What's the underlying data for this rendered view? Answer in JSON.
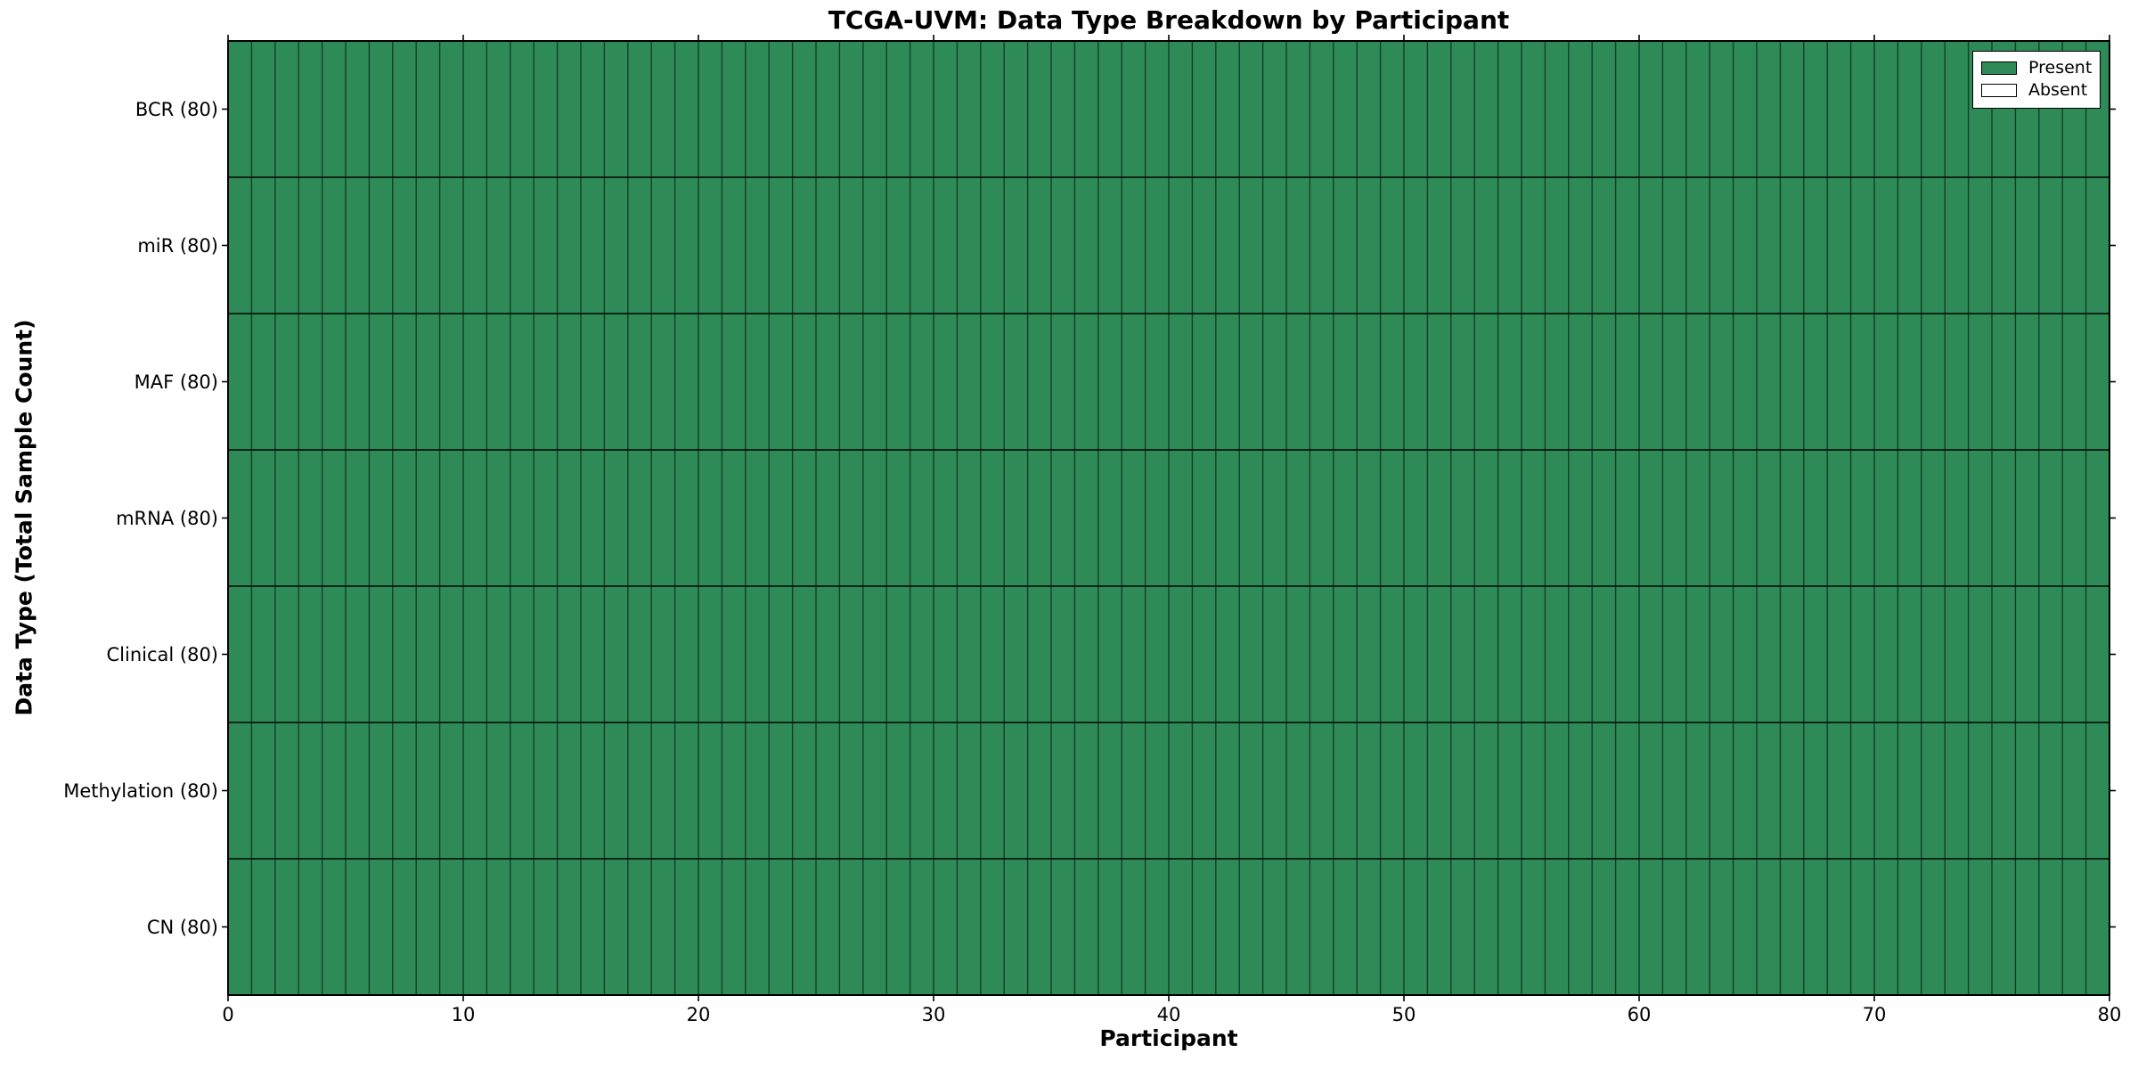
{
  "chart_data": {
    "type": "heatmap",
    "title": "TCGA-UVM: Data Type Breakdown by Participant",
    "xlabel": "Participant",
    "ylabel": "Data Type (Total Sample Count)",
    "x_axis": {
      "min": 0,
      "max": 80,
      "ticks": [
        0,
        10,
        20,
        30,
        40,
        50,
        60,
        70,
        80
      ]
    },
    "participants": 80,
    "rows_top_to_bottom": [
      {
        "label": "BCR",
        "tick_label": "BCR (80)",
        "total_samples": 80,
        "present_count": 80,
        "absent_count": 0
      },
      {
        "label": "miR",
        "tick_label": "miR (80)",
        "total_samples": 80,
        "present_count": 80,
        "absent_count": 0
      },
      {
        "label": "MAF",
        "tick_label": "MAF (80)",
        "total_samples": 80,
        "present_count": 80,
        "absent_count": 0
      },
      {
        "label": "mRNA",
        "tick_label": "mRNA (80)",
        "total_samples": 80,
        "present_count": 80,
        "absent_count": 0
      },
      {
        "label": "Clinical",
        "tick_label": "Clinical (80)",
        "total_samples": 80,
        "present_count": 80,
        "absent_count": 0
      },
      {
        "label": "Methylation",
        "tick_label": "Methylation (80)",
        "total_samples": 80,
        "present_count": 80,
        "absent_count": 0
      },
      {
        "label": "CN",
        "tick_label": "CN (80)",
        "total_samples": 80,
        "present_count": 80,
        "absent_count": 0
      }
    ],
    "cells": {
      "description": "7 data types x 80 participants; every cell is Present",
      "present_value": 1,
      "absent_value": 0
    },
    "legend": [
      {
        "label": "Present",
        "color": "#2E8B57"
      },
      {
        "label": "Absent",
        "color": "#FFFFFF"
      }
    ],
    "legend_position": "upper right",
    "grid": "cell-borders",
    "colors": {
      "present_fill": "#2E8B57",
      "absent_fill": "#FFFFFF",
      "cell_edge": "#000000",
      "spine": "#000000",
      "background": "#FFFFFF",
      "text": "#000000"
    }
  }
}
